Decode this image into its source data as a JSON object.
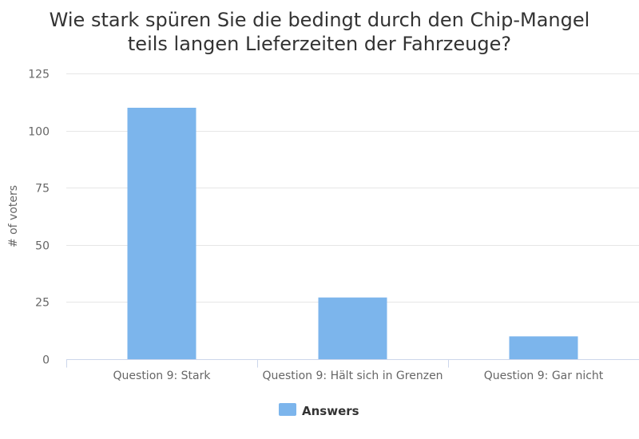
{
  "chart_data": {
    "type": "bar",
    "title": [
      "Wie stark spüren Sie die bedingt durch den Chip-Mangel",
      "teils langen Lieferzeiten der Fahrzeuge?"
    ],
    "ylabel": "# of voters",
    "xlabel": "",
    "categories": [
      "Question 9: Stark",
      "Question 9: Hält sich in Grenzen",
      "Question 9: Gar nicht"
    ],
    "series": [
      {
        "name": "Answers",
        "color": "#7cb5ec",
        "values": [
          110,
          27,
          10
        ]
      }
    ],
    "ylim": [
      0,
      125
    ],
    "yticks": [
      0,
      25,
      50,
      75,
      100,
      125
    ],
    "grid": true,
    "legend": "bottom-center"
  }
}
